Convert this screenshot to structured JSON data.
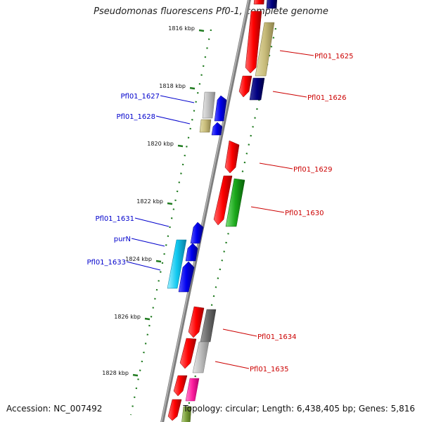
{
  "title": "Pseudomonas fluorescens Pf0-1, complete genome",
  "accession": "Accession: NC_007492",
  "topology": "Topology: circular; Length: 6,438,405 bp; Genes: 5,816",
  "colors": {
    "backbone": "#8c8c8c",
    "tick": "#1e7a1e",
    "label_left": "#0000cc",
    "label_right": "#cc0000"
  },
  "ticks": [
    {
      "label": "1816 kbp"
    },
    {
      "label": "1818 kbp"
    },
    {
      "label": "1820 kbp"
    },
    {
      "label": "1822 kbp"
    },
    {
      "label": "1824 kbp"
    },
    {
      "label": "1826 kbp"
    },
    {
      "label": "1828 kbp"
    }
  ],
  "genes": [
    {
      "name": "Pfl01_1625",
      "color": "#cc0000",
      "strand": "forward"
    },
    {
      "name": "Pfl01_1626",
      "color": "#cc0000",
      "strand": "forward"
    },
    {
      "name": "Pfl01_1627",
      "color": "#0000cc",
      "strand": "reverse"
    },
    {
      "name": "Pfl01_1628",
      "color": "#0000cc",
      "strand": "reverse"
    },
    {
      "name": "Pfl01_1629",
      "color": "#cc0000",
      "strand": "forward"
    },
    {
      "name": "Pfl01_1630",
      "color": "#cc0000",
      "strand": "forward"
    },
    {
      "name": "Pfl01_1631",
      "color": "#0000cc",
      "strand": "reverse"
    },
    {
      "name": "purN",
      "color": "#0000cc",
      "strand": "reverse"
    },
    {
      "name": "Pfl01_1633",
      "color": "#0000cc",
      "strand": "reverse"
    },
    {
      "name": "Pfl01_1634",
      "color": "#cc0000",
      "strand": "forward"
    },
    {
      "name": "Pfl01_1635",
      "color": "#cc0000",
      "strand": "forward"
    }
  ]
}
